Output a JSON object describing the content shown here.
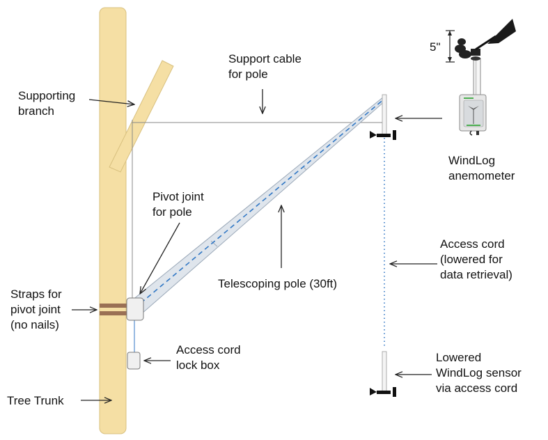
{
  "labels": {
    "supporting_branch": [
      "Supporting",
      "branch"
    ],
    "support_cable": [
      "Support cable",
      "for pole"
    ],
    "dimension": "5\"",
    "anemometer": [
      "WindLog",
      "anemometer"
    ],
    "pivot_joint": [
      "Pivot joint",
      "for pole"
    ],
    "access_cord": [
      "Access cord",
      "(lowered for",
      "data retrieval)"
    ],
    "telescoping_pole": "Telescoping pole (30ft)",
    "straps": [
      "Straps for",
      "pivot joint",
      "(no nails)"
    ],
    "lock_box": [
      "Access cord",
      "lock box"
    ],
    "lowered_sensor": [
      "Lowered",
      "WindLog sensor",
      "via access cord"
    ],
    "tree_trunk": "Tree Trunk"
  },
  "colors": {
    "trunk_fill": "#f5dfa4",
    "trunk_stroke": "#d8c07e",
    "strap": "#9a7054",
    "pole_fill": "#dfe5ec",
    "pole_stroke": "#9aa8b8",
    "pole_cord": "#2f76c4",
    "access_cord": "#2f76c4",
    "cable": "#888888",
    "sensor_green": "#4caf50",
    "vane": "#1a1a1a"
  }
}
